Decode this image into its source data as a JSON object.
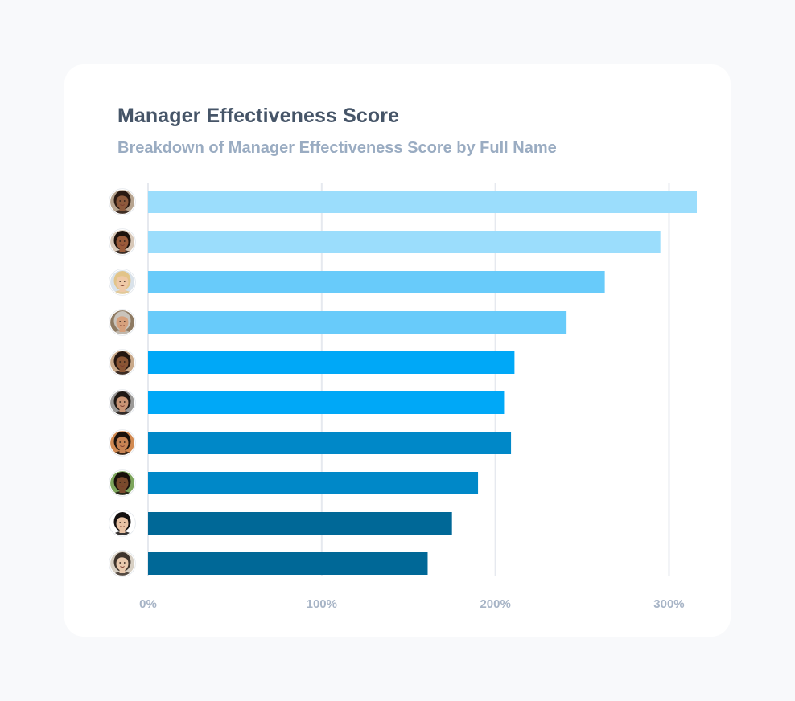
{
  "header": {
    "title": "Manager Effectiveness Score",
    "subtitle": "Breakdown of Manager Effectiveness Score by Full Name"
  },
  "chart_data": {
    "type": "bar",
    "orientation": "horizontal",
    "title": "Manager Effectiveness Score",
    "subtitle": "Breakdown of Manager Effectiveness Score by Full Name",
    "xlabel": "",
    "ylabel": "",
    "xlim": [
      0,
      316
    ],
    "x_ticks": [
      0,
      100,
      200,
      300
    ],
    "x_tick_labels": [
      "0%",
      "100%",
      "200%",
      "300%"
    ],
    "grid": true,
    "categories_as_avatars": true,
    "values": [
      316,
      295,
      263,
      241,
      211,
      205,
      209,
      190,
      175,
      161
    ],
    "bar_colors": [
      "#9bddfc",
      "#9bddfc",
      "#68cbfa",
      "#68cbfa",
      "#00a8f7",
      "#00a8f7",
      "#0088c8",
      "#0088c8",
      "#006897",
      "#006897"
    ],
    "avatars": [
      {
        "skin": "#8d5a3c",
        "hair": "#2a1a12",
        "bg": "#b7a48f"
      },
      {
        "skin": "#9a5b3a",
        "hair": "#1d120c",
        "bg": "#d8c8b8"
      },
      {
        "skin": "#efc9a7",
        "hair": "#e2c489",
        "bg": "#d9e2ea"
      },
      {
        "skin": "#d6a07c",
        "hair": "#c9c3bb",
        "bg": "#8e7a62"
      },
      {
        "skin": "#8a5534",
        "hair": "#241610",
        "bg": "#c9a98a"
      },
      {
        "skin": "#c89474",
        "hair": "#1e1814",
        "bg": "#9c9a98"
      },
      {
        "skin": "#c78353",
        "hair": "#1b120c",
        "bg": "#d28a52"
      },
      {
        "skin": "#7a4a2c",
        "hair": "#18100b",
        "bg": "#7da55c"
      },
      {
        "skin": "#e8c2a4",
        "hair": "#141010",
        "bg": "#ffffff"
      },
      {
        "skin": "#e9c9ad",
        "hair": "#3e342c",
        "bg": "#d8d0c4"
      }
    ]
  }
}
